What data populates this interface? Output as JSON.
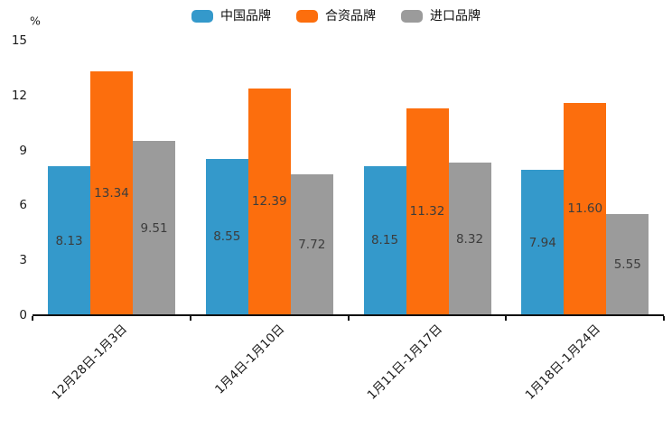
{
  "legend": {
    "items": [
      {
        "label": "中国品牌",
        "color": "#3499CB"
      },
      {
        "label": "合资品牌",
        "color": "#FC6E0D"
      },
      {
        "label": "进口品牌",
        "color": "#9B9B9B"
      }
    ]
  },
  "chart_data": {
    "type": "bar",
    "title": "",
    "unit_label": "%",
    "categories": [
      "12月28日-1月3日",
      "1月4日-1月10日",
      "1月11日-1月17日",
      "1月18日-1月24日"
    ],
    "series": [
      {
        "name": "中国品牌",
        "color": "#3499CB",
        "values": [
          8.13,
          8.55,
          8.15,
          7.94
        ],
        "value_labels": [
          "8.13",
          "8.55",
          "8.15",
          "7.94"
        ]
      },
      {
        "name": "合资品牌",
        "color": "#FC6E0D",
        "values": [
          13.34,
          12.39,
          11.32,
          11.6
        ],
        "value_labels": [
          "13.34",
          "12.39",
          "11.32",
          "11.60"
        ]
      },
      {
        "name": "进口品牌",
        "color": "#9B9B9B",
        "values": [
          9.51,
          7.72,
          8.32,
          5.55
        ],
        "value_labels": [
          "9.51",
          "7.72",
          "8.32",
          "5.55"
        ]
      }
    ],
    "xlabel": "",
    "ylabel": "%",
    "ylim": [
      0,
      15
    ],
    "yticks": [
      "0",
      "3",
      "6",
      "9",
      "12",
      "15"
    ],
    "grid": false,
    "legend_position": "top",
    "value_label_position": "inside-center"
  },
  "colors": {
    "value_label_text": "#3C3C3C",
    "axis_text": "#1A1A1A",
    "axis_line": "#111111",
    "background": "#FFFFFF"
  }
}
